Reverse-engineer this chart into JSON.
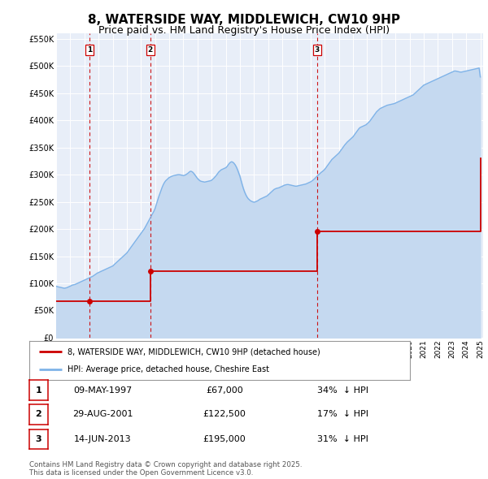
{
  "title": "8, WATERSIDE WAY, MIDDLEWICH, CW10 9HP",
  "subtitle": "Price paid vs. HM Land Registry's House Price Index (HPI)",
  "title_fontsize": 11,
  "subtitle_fontsize": 9,
  "background_color": "#ffffff",
  "plot_bg_color": "#e8eef8",
  "grid_color": "#ffffff",
  "ylim": [
    0,
    560000
  ],
  "yticks": [
    0,
    50000,
    100000,
    150000,
    200000,
    250000,
    300000,
    350000,
    400000,
    450000,
    500000,
    550000
  ],
  "ytick_labels": [
    "£0",
    "£50K",
    "£100K",
    "£150K",
    "£200K",
    "£250K",
    "£300K",
    "£350K",
    "£400K",
    "£450K",
    "£500K",
    "£550K"
  ],
  "sale_color": "#cc0000",
  "hpi_color": "#7fb3e8",
  "hpi_fill_color": "#c5d9f0",
  "sale_dot_color": "#cc0000",
  "sale_marker_size": 5,
  "vline_color": "#cc0000",
  "vline_style": "--",
  "legend_label_sale": "8, WATERSIDE WAY, MIDDLEWICH, CW10 9HP (detached house)",
  "legend_label_hpi": "HPI: Average price, detached house, Cheshire East",
  "transactions": [
    {
      "num": 1,
      "date": "09-MAY-1997",
      "date_x": 1997.36,
      "price": 67000,
      "hpi_pct": "34%",
      "direction": "↓"
    },
    {
      "num": 2,
      "date": "29-AUG-2001",
      "date_x": 2001.66,
      "price": 122500,
      "hpi_pct": "17%",
      "direction": "↓"
    },
    {
      "num": 3,
      "date": "14-JUN-2013",
      "date_x": 2013.45,
      "price": 195000,
      "hpi_pct": "31%",
      "direction": "↓"
    }
  ],
  "footnote": "Contains HM Land Registry data © Crown copyright and database right 2025.\nThis data is licensed under the Open Government Licence v3.0.",
  "hpi_data_x": [
    1995.0,
    1995.083,
    1995.167,
    1995.25,
    1995.333,
    1995.417,
    1995.5,
    1995.583,
    1995.667,
    1995.75,
    1995.833,
    1995.917,
    1996.0,
    1996.083,
    1996.167,
    1996.25,
    1996.333,
    1996.417,
    1996.5,
    1996.583,
    1996.667,
    1996.75,
    1996.833,
    1996.917,
    1997.0,
    1997.083,
    1997.167,
    1997.25,
    1997.333,
    1997.417,
    1997.5,
    1997.583,
    1997.667,
    1997.75,
    1997.833,
    1997.917,
    1998.0,
    1998.083,
    1998.167,
    1998.25,
    1998.333,
    1998.417,
    1998.5,
    1998.583,
    1998.667,
    1998.75,
    1998.833,
    1998.917,
    1999.0,
    1999.083,
    1999.167,
    1999.25,
    1999.333,
    1999.417,
    1999.5,
    1999.583,
    1999.667,
    1999.75,
    1999.833,
    1999.917,
    2000.0,
    2000.083,
    2000.167,
    2000.25,
    2000.333,
    2000.417,
    2000.5,
    2000.583,
    2000.667,
    2000.75,
    2000.833,
    2000.917,
    2001.0,
    2001.083,
    2001.167,
    2001.25,
    2001.333,
    2001.417,
    2001.5,
    2001.583,
    2001.667,
    2001.75,
    2001.833,
    2001.917,
    2002.0,
    2002.083,
    2002.167,
    2002.25,
    2002.333,
    2002.417,
    2002.5,
    2002.583,
    2002.667,
    2002.75,
    2002.833,
    2002.917,
    2003.0,
    2003.083,
    2003.167,
    2003.25,
    2003.333,
    2003.417,
    2003.5,
    2003.583,
    2003.667,
    2003.75,
    2003.833,
    2003.917,
    2004.0,
    2004.083,
    2004.167,
    2004.25,
    2004.333,
    2004.417,
    2004.5,
    2004.583,
    2004.667,
    2004.75,
    2004.833,
    2004.917,
    2005.0,
    2005.083,
    2005.167,
    2005.25,
    2005.333,
    2005.417,
    2005.5,
    2005.583,
    2005.667,
    2005.75,
    2005.833,
    2005.917,
    2006.0,
    2006.083,
    2006.167,
    2006.25,
    2006.333,
    2006.417,
    2006.5,
    2006.583,
    2006.667,
    2006.75,
    2006.833,
    2006.917,
    2007.0,
    2007.083,
    2007.167,
    2007.25,
    2007.333,
    2007.417,
    2007.5,
    2007.583,
    2007.667,
    2007.75,
    2007.833,
    2007.917,
    2008.0,
    2008.083,
    2008.167,
    2008.25,
    2008.333,
    2008.417,
    2008.5,
    2008.583,
    2008.667,
    2008.75,
    2008.833,
    2008.917,
    2009.0,
    2009.083,
    2009.167,
    2009.25,
    2009.333,
    2009.417,
    2009.5,
    2009.583,
    2009.667,
    2009.75,
    2009.833,
    2009.917,
    2010.0,
    2010.083,
    2010.167,
    2010.25,
    2010.333,
    2010.417,
    2010.5,
    2010.583,
    2010.667,
    2010.75,
    2010.833,
    2010.917,
    2011.0,
    2011.083,
    2011.167,
    2011.25,
    2011.333,
    2011.417,
    2011.5,
    2011.583,
    2011.667,
    2011.75,
    2011.833,
    2011.917,
    2012.0,
    2012.083,
    2012.167,
    2012.25,
    2012.333,
    2012.417,
    2012.5,
    2012.583,
    2012.667,
    2012.75,
    2012.833,
    2012.917,
    2013.0,
    2013.083,
    2013.167,
    2013.25,
    2013.333,
    2013.417,
    2013.5,
    2013.583,
    2013.667,
    2013.75,
    2013.833,
    2013.917,
    2014.0,
    2014.083,
    2014.167,
    2014.25,
    2014.333,
    2014.417,
    2014.5,
    2014.583,
    2014.667,
    2014.75,
    2014.833,
    2014.917,
    2015.0,
    2015.083,
    2015.167,
    2015.25,
    2015.333,
    2015.417,
    2015.5,
    2015.583,
    2015.667,
    2015.75,
    2015.833,
    2015.917,
    2016.0,
    2016.083,
    2016.167,
    2016.25,
    2016.333,
    2016.417,
    2016.5,
    2016.583,
    2016.667,
    2016.75,
    2016.833,
    2016.917,
    2017.0,
    2017.083,
    2017.167,
    2017.25,
    2017.333,
    2017.417,
    2017.5,
    2017.583,
    2017.667,
    2017.75,
    2017.833,
    2017.917,
    2018.0,
    2018.083,
    2018.167,
    2018.25,
    2018.333,
    2018.417,
    2018.5,
    2018.583,
    2018.667,
    2018.75,
    2018.833,
    2018.917,
    2019.0,
    2019.083,
    2019.167,
    2019.25,
    2019.333,
    2019.417,
    2019.5,
    2019.583,
    2019.667,
    2019.75,
    2019.833,
    2019.917,
    2020.0,
    2020.083,
    2020.167,
    2020.25,
    2020.333,
    2020.417,
    2020.5,
    2020.583,
    2020.667,
    2020.75,
    2020.833,
    2020.917,
    2021.0,
    2021.083,
    2021.167,
    2021.25,
    2021.333,
    2021.417,
    2021.5,
    2021.583,
    2021.667,
    2021.75,
    2021.833,
    2021.917,
    2022.0,
    2022.083,
    2022.167,
    2022.25,
    2022.333,
    2022.417,
    2022.5,
    2022.583,
    2022.667,
    2022.75,
    2022.833,
    2022.917,
    2023.0,
    2023.083,
    2023.167,
    2023.25,
    2023.333,
    2023.417,
    2023.5,
    2023.583,
    2023.667,
    2023.75,
    2023.833,
    2023.917,
    2024.0,
    2024.083,
    2024.167,
    2024.25,
    2024.333,
    2024.417,
    2024.5,
    2024.583,
    2024.667,
    2024.75,
    2024.833,
    2024.917,
    2025.0
  ],
  "hpi_data_y": [
    95000,
    94000,
    93500,
    93000,
    92500,
    92000,
    91500,
    91000,
    91500,
    92000,
    93000,
    94000,
    95000,
    96000,
    97000,
    97500,
    98000,
    99000,
    100000,
    101000,
    102000,
    103000,
    104000,
    105000,
    106000,
    107000,
    108000,
    109000,
    110000,
    111000,
    112000,
    113000,
    114500,
    116000,
    117500,
    119000,
    120000,
    121000,
    122000,
    123000,
    124000,
    125000,
    126000,
    127000,
    128000,
    129000,
    130000,
    131000,
    132000,
    134000,
    136000,
    138000,
    140000,
    142000,
    144000,
    146000,
    148000,
    150000,
    152000,
    154000,
    156000,
    159000,
    162000,
    165000,
    168000,
    171000,
    174000,
    177000,
    180000,
    183000,
    186000,
    189000,
    192000,
    195000,
    198000,
    201000,
    205000,
    209000,
    213000,
    217000,
    221000,
    225000,
    229000,
    233000,
    238000,
    245000,
    252000,
    259000,
    265000,
    271000,
    277000,
    282000,
    286000,
    289000,
    291000,
    293000,
    295000,
    296000,
    297000,
    298000,
    298500,
    299000,
    299500,
    300000,
    300200,
    300000,
    299500,
    299000,
    298500,
    299000,
    300000,
    301500,
    303000,
    305000,
    306500,
    306000,
    304500,
    302000,
    299000,
    296000,
    293000,
    291000,
    289000,
    288000,
    287500,
    287000,
    286500,
    287000,
    287500,
    288000,
    288500,
    289000,
    290000,
    292000,
    294000,
    296500,
    299000,
    302000,
    305000,
    307000,
    309000,
    310000,
    311000,
    312000,
    313000,
    315000,
    318000,
    321000,
    323000,
    324000,
    323000,
    321000,
    318000,
    314000,
    309000,
    303000,
    297000,
    289000,
    281000,
    274000,
    268000,
    263000,
    259000,
    256000,
    254000,
    252000,
    251000,
    250000,
    249500,
    250000,
    251000,
    252000,
    253500,
    255000,
    256000,
    257000,
    258000,
    259000,
    260000,
    261000,
    263000,
    265000,
    267000,
    269000,
    271000,
    273000,
    274000,
    275000,
    275500,
    276000,
    277000,
    278000,
    279000,
    280000,
    281000,
    281500,
    282000,
    282000,
    281500,
    281000,
    280500,
    280000,
    279500,
    279000,
    279000,
    279500,
    280000,
    280500,
    281000,
    281500,
    282000,
    282500,
    283000,
    284000,
    285000,
    286000,
    287000,
    288500,
    290000,
    292000,
    294000,
    296500,
    298500,
    300500,
    302500,
    304500,
    306000,
    308000,
    310000,
    313000,
    316000,
    319000,
    322000,
    325000,
    328000,
    330000,
    332000,
    334000,
    336000,
    338000,
    340000,
    343000,
    346000,
    349000,
    352000,
    355000,
    357500,
    360000,
    362000,
    364000,
    366000,
    368000,
    370000,
    373000,
    376000,
    379000,
    382000,
    385000,
    387000,
    388000,
    389000,
    390000,
    391000,
    392000,
    394000,
    396000,
    398000,
    401000,
    404000,
    407000,
    410000,
    413000,
    416000,
    418000,
    420000,
    422000,
    423000,
    424000,
    425000,
    426000,
    427000,
    428000,
    428500,
    429000,
    429500,
    430000,
    430500,
    431000,
    432000,
    433000,
    434000,
    435000,
    436000,
    437000,
    438000,
    439000,
    440000,
    441000,
    442000,
    443000,
    444000,
    445000,
    446000,
    447000,
    449000,
    451000,
    453000,
    455000,
    457000,
    459000,
    461000,
    463000,
    465000,
    466000,
    467000,
    468000,
    469000,
    470000,
    471000,
    472000,
    473000,
    474000,
    475000,
    476000,
    477000,
    478000,
    479000,
    480000,
    481000,
    482000,
    483000,
    484000,
    485000,
    486000,
    487000,
    488000,
    489000,
    490000,
    491000,
    491000,
    490500,
    490000,
    489500,
    489000,
    489000,
    489500,
    490000,
    490500,
    491000,
    491500,
    492000,
    492500,
    493000,
    493500,
    494000,
    494500,
    495000,
    495500,
    496000,
    496500,
    480000
  ],
  "sale_data_x": [
    1995.0,
    1997.36,
    1997.36,
    2001.66,
    2001.66,
    2013.45,
    2013.45,
    2025.0
  ],
  "sale_data_y": [
    67000,
    67000,
    67000,
    122500,
    122500,
    195000,
    195000,
    330000
  ],
  "xmin": 1995,
  "xmax": 2025.2
}
